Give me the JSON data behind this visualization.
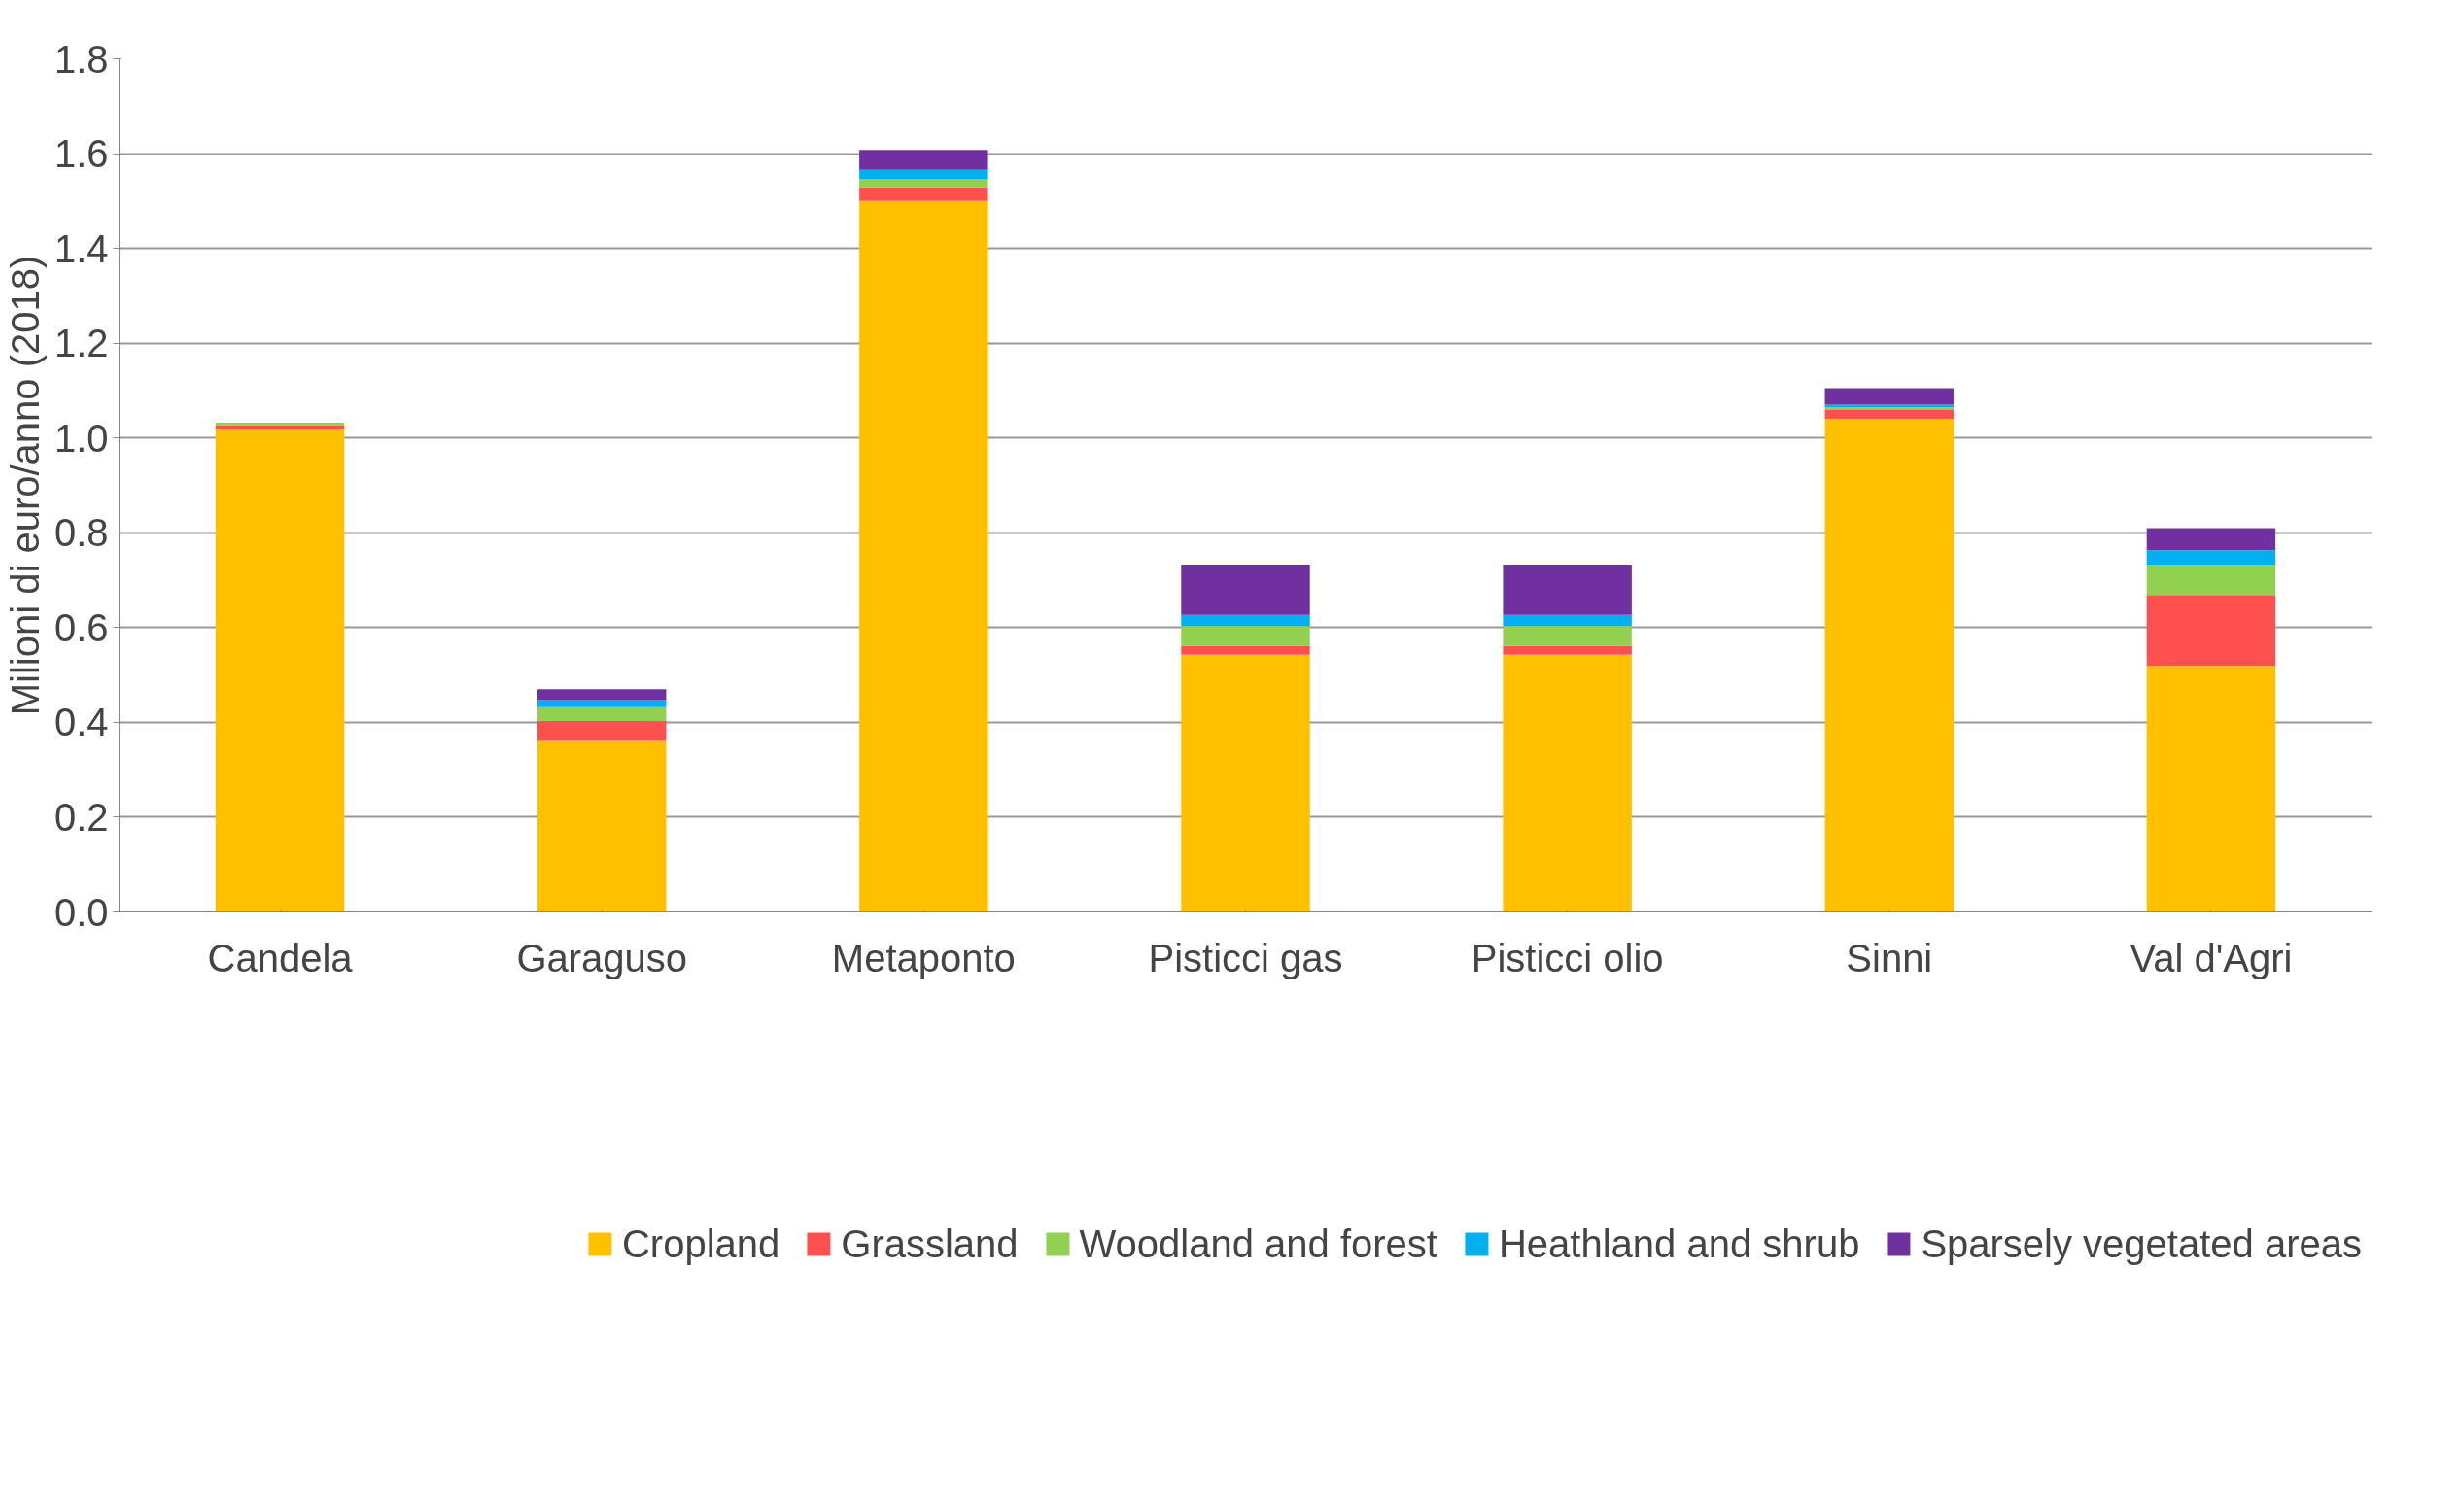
{
  "chart_data": {
    "type": "bar",
    "stacked": true,
    "ylabel": "Milioni di euro/anno (2018)",
    "categories": [
      "Candela",
      "Garaguso",
      "Metaponto",
      "Pisticci gas",
      "Pisticci olio",
      "Sinni",
      "Val d'Agri"
    ],
    "series": [
      {
        "name": "Cropland",
        "color": "#ffc000",
        "values": [
          1.02,
          0.361,
          1.5,
          0.543,
          0.543,
          1.04,
          0.519
        ]
      },
      {
        "name": "Grassland",
        "color": "#ff5050",
        "values": [
          0.007,
          0.042,
          0.029,
          0.018,
          0.018,
          0.019,
          0.15
        ]
      },
      {
        "name": "Woodland and forest",
        "color": "#92d050",
        "values": [
          0.005,
          0.029,
          0.018,
          0.042,
          0.042,
          0.006,
          0.064
        ]
      },
      {
        "name": "Heathland and shrub",
        "color": "#00b0f0",
        "values": [
          0,
          0.015,
          0.019,
          0.024,
          0.024,
          0.005,
          0.03
        ]
      },
      {
        "name": "Sparsely vegetated areas",
        "color": "#7030a0",
        "values": [
          0,
          0.023,
          0.042,
          0.106,
          0.106,
          0.035,
          0.047
        ]
      }
    ],
    "ylim": [
      0,
      1.8
    ],
    "yticks": [
      {
        "value": 0,
        "label": "0.0"
      },
      {
        "value": 0.2,
        "label": "0.2"
      },
      {
        "value": 0.4,
        "label": "0.4"
      },
      {
        "value": 0.6,
        "label": "0.6"
      },
      {
        "value": 0.8,
        "label": "0.8"
      },
      {
        "value": 1.0,
        "label": "1.0"
      },
      {
        "value": 1.2,
        "label": "1.2"
      },
      {
        "value": 1.4,
        "label": "1.4"
      },
      {
        "value": 1.6,
        "label": "1.6"
      },
      {
        "value": 1.8,
        "label": "1.8"
      }
    ],
    "grid": "y",
    "legend": "bottom"
  }
}
